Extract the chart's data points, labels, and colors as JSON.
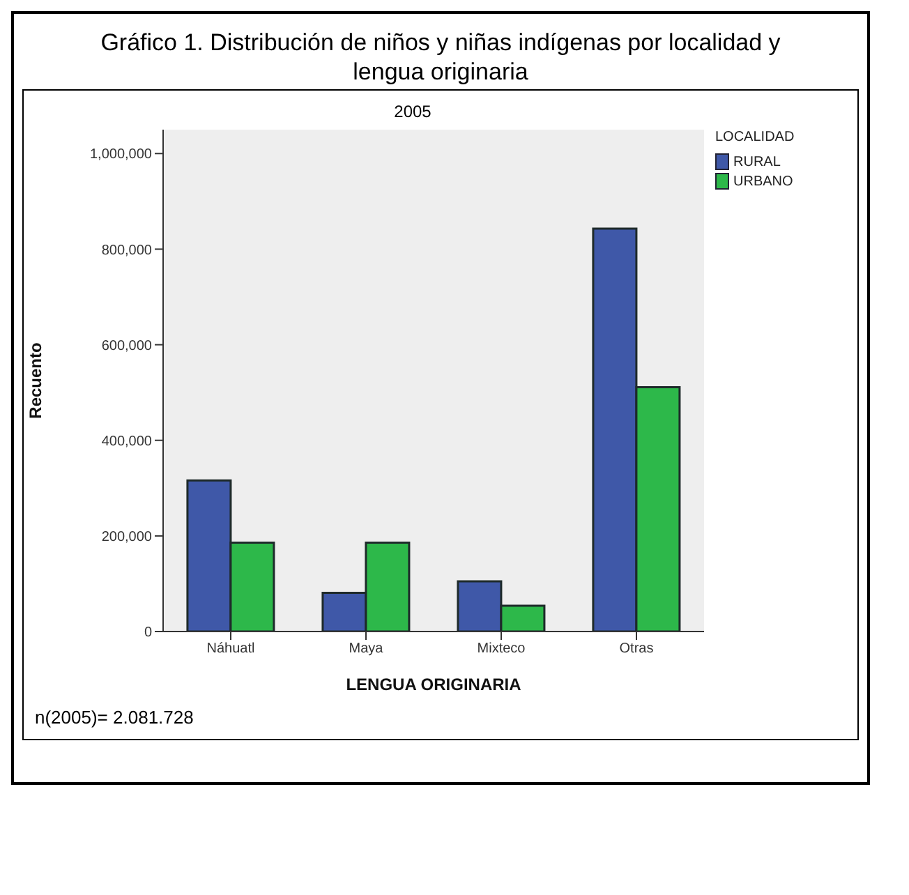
{
  "chart_data": {
    "type": "bar",
    "title": "Gráfico 1. Distribución de niños y niñas indígenas por localidad y lengua originaria",
    "subtitle": "2005",
    "xlabel": "LENGUA ORIGINARIA",
    "ylabel": "Recuento",
    "legend_title": "LOCALIDAD",
    "categories": [
      "Náhuatl",
      "Maya",
      "Mixteco",
      "Otras"
    ],
    "series": [
      {
        "name": "RURAL",
        "color": "#3f58a8",
        "values": [
          316000,
          81000,
          105000,
          843000
        ]
      },
      {
        "name": "URBANO",
        "color": "#2db84a",
        "values": [
          186000,
          186000,
          54000,
          511000
        ]
      }
    ],
    "ylim": [
      0,
      1050000
    ],
    "yticks": [
      {
        "value": 0,
        "label": "0"
      },
      {
        "value": 200000,
        "label": "200,000"
      },
      {
        "value": 400000,
        "label": "400,000"
      },
      {
        "value": 600000,
        "label": "600,000"
      },
      {
        "value": 800000,
        "label": "800,000"
      },
      {
        "value": 1000000,
        "label": "1,000,000"
      }
    ],
    "grid": false,
    "legend": "top right",
    "annotations": [
      "n(2005)= 2.081.728"
    ]
  }
}
